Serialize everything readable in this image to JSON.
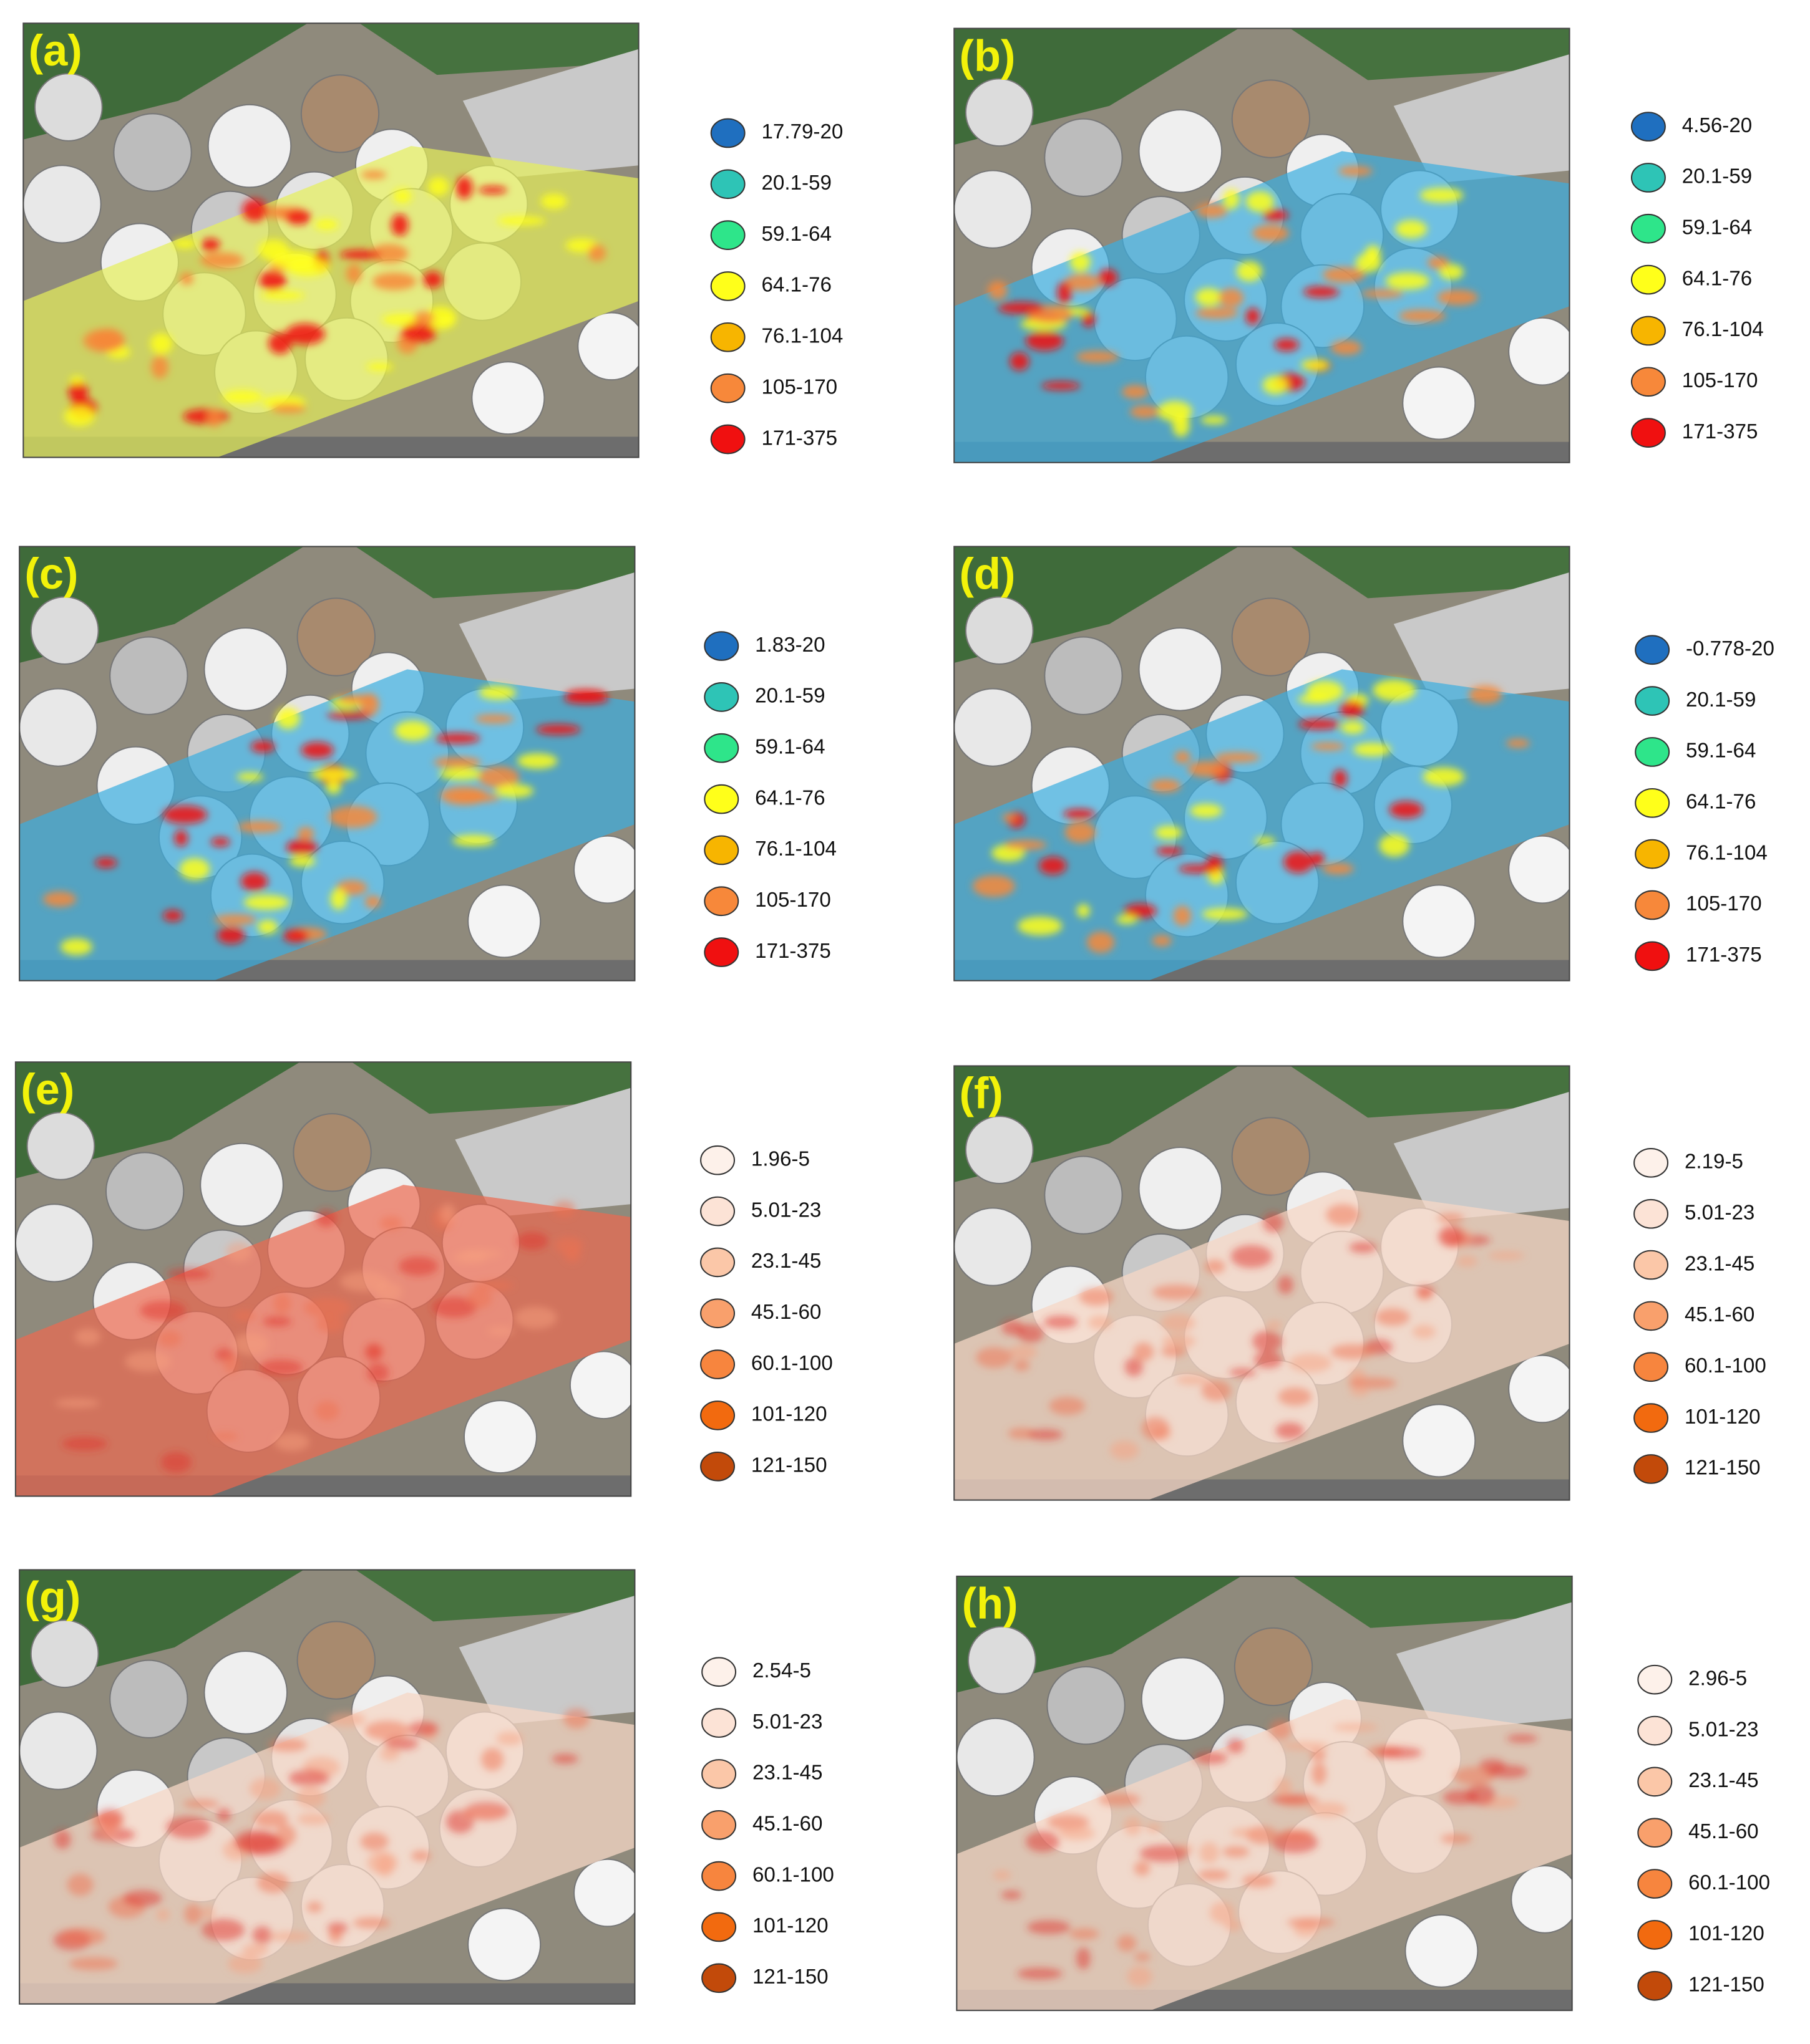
{
  "panels": [
    {
      "label": "(a)",
      "legend": [
        {
          "label": "17.79-20",
          "color": "#1f6fbf"
        },
        {
          "label": "20.1-59",
          "color": "#2ec4b6"
        },
        {
          "label": "59.1-64",
          "color": "#2ee58a"
        },
        {
          "label": "64.1-76",
          "color": "#ffff1a"
        },
        {
          "label": "76.1-104",
          "color": "#f7b500"
        },
        {
          "label": "105-170",
          "color": "#f7883a"
        },
        {
          "label": "171-375",
          "color": "#f01010"
        }
      ]
    },
    {
      "label": "(b)",
      "legend": [
        {
          "label": "4.56-20",
          "color": "#1f6fbf"
        },
        {
          "label": "20.1-59",
          "color": "#2ec4b6"
        },
        {
          "label": "59.1-64",
          "color": "#2ee58a"
        },
        {
          "label": "64.1-76",
          "color": "#ffff1a"
        },
        {
          "label": "76.1-104",
          "color": "#f7b500"
        },
        {
          "label": "105-170",
          "color": "#f7883a"
        },
        {
          "label": "171-375",
          "color": "#f01010"
        }
      ]
    },
    {
      "label": "(c)",
      "legend": [
        {
          "label": "1.83-20",
          "color": "#1f6fbf"
        },
        {
          "label": "20.1-59",
          "color": "#2ec4b6"
        },
        {
          "label": "59.1-64",
          "color": "#2ee58a"
        },
        {
          "label": "64.1-76",
          "color": "#ffff1a"
        },
        {
          "label": "76.1-104",
          "color": "#f7b500"
        },
        {
          "label": "105-170",
          "color": "#f7883a"
        },
        {
          "label": "171-375",
          "color": "#f01010"
        }
      ]
    },
    {
      "label": "(d)",
      "legend": [
        {
          "label": "-0.778-20",
          "color": "#1f6fbf"
        },
        {
          "label": "20.1-59",
          "color": "#2ec4b6"
        },
        {
          "label": "59.1-64",
          "color": "#2ee58a"
        },
        {
          "label": "64.1-76",
          "color": "#ffff1a"
        },
        {
          "label": "76.1-104",
          "color": "#f7b500"
        },
        {
          "label": "105-170",
          "color": "#f7883a"
        },
        {
          "label": "171-375",
          "color": "#f01010"
        }
      ]
    },
    {
      "label": "(e)",
      "legend": [
        {
          "label": "1.96-5",
          "color": "#fdf1ea"
        },
        {
          "label": "5.01-23",
          "color": "#fce3d6"
        },
        {
          "label": "23.1-45",
          "color": "#fbc7a8"
        },
        {
          "label": "45.1-60",
          "color": "#f9a06c"
        },
        {
          "label": "60.1-100",
          "color": "#f7853e"
        },
        {
          "label": "101-120",
          "color": "#f26a0f"
        },
        {
          "label": "121-150",
          "color": "#c24a0a"
        }
      ]
    },
    {
      "label": "(f)",
      "legend": [
        {
          "label": "2.19-5",
          "color": "#fdf1ea"
        },
        {
          "label": "5.01-23",
          "color": "#fce3d6"
        },
        {
          "label": "23.1-45",
          "color": "#fbc7a8"
        },
        {
          "label": "45.1-60",
          "color": "#f9a06c"
        },
        {
          "label": "60.1-100",
          "color": "#f7853e"
        },
        {
          "label": "101-120",
          "color": "#f26a0f"
        },
        {
          "label": "121-150",
          "color": "#c24a0a"
        }
      ]
    },
    {
      "label": "(g)",
      "legend": [
        {
          "label": "2.54-5",
          "color": "#fdf1ea"
        },
        {
          "label": "5.01-23",
          "color": "#fce3d6"
        },
        {
          "label": "23.1-45",
          "color": "#fbc7a8"
        },
        {
          "label": "45.1-60",
          "color": "#f9a06c"
        },
        {
          "label": "60.1-100",
          "color": "#f7853e"
        },
        {
          "label": "101-120",
          "color": "#f26a0f"
        },
        {
          "label": "121-150",
          "color": "#c24a0a"
        }
      ]
    },
    {
      "label": "(h)",
      "legend": [
        {
          "label": "2.96-5",
          "color": "#fdf1ea"
        },
        {
          "label": "5.01-23",
          "color": "#fce3d6"
        },
        {
          "label": "23.1-45",
          "color": "#fbc7a8"
        },
        {
          "label": "45.1-60",
          "color": "#f9a06c"
        },
        {
          "label": "60.1-100",
          "color": "#f7853e"
        },
        {
          "label": "101-120",
          "color": "#f26a0f"
        },
        {
          "label": "121-150",
          "color": "#c24a0a"
        }
      ]
    }
  ]
}
